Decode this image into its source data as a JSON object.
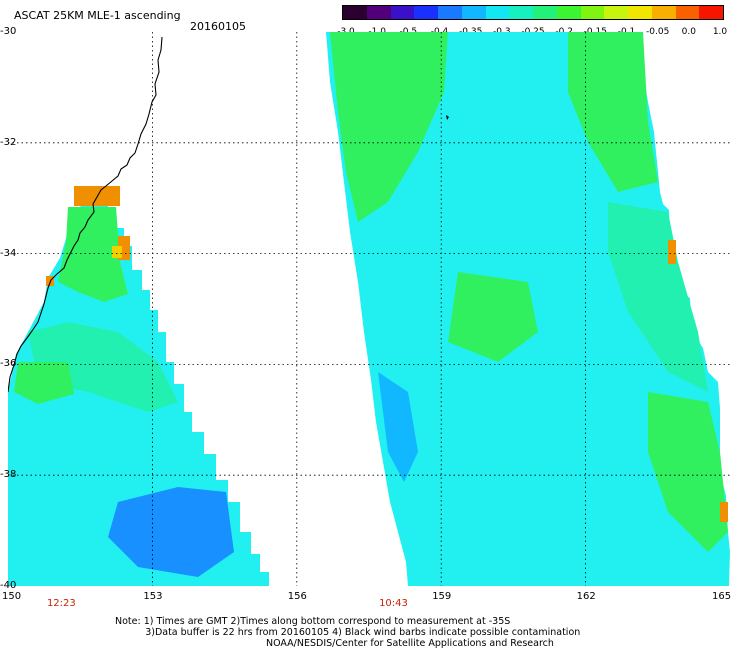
{
  "header": {
    "title": "ASCAT 25KM MLE-1 ascending",
    "date": "20160105"
  },
  "colorbar": {
    "labels": [
      "-3.0",
      "-1.0",
      "-0.5",
      "-0.4",
      "-0.35",
      "-0.3",
      "-0.25",
      "-0.2",
      "-0.15",
      "-0.1",
      "-0.05",
      "0.0",
      "1.0"
    ],
    "colors": [
      "#2b0030",
      "#52007a",
      "#3a10c8",
      "#1a30ff",
      "#1a7aff",
      "#11b8ff",
      "#12e8f2",
      "#17f0c0",
      "#22f27a",
      "#3cf532",
      "#80f50f",
      "#c8f50d",
      "#f0e600",
      "#f8b000",
      "#f86000",
      "#f81500"
    ]
  },
  "map": {
    "lat_labels": [
      "-30",
      "-32",
      "-34",
      "-36",
      "-38",
      "-40"
    ],
    "lon_labels": [
      "150",
      "153",
      "156",
      "159",
      "162",
      "165"
    ],
    "lat_range": [
      -40,
      -30
    ],
    "lon_range": [
      150,
      165
    ],
    "time_labels": [
      {
        "text": "12:23",
        "lon": 151.1
      },
      {
        "text": "10:43",
        "lon": 158.0
      }
    ],
    "colors": {
      "cyan": "#22f0f0",
      "light_cyan": "#3ef8f0",
      "aqua_green": "#22f0b0",
      "green": "#30f060",
      "bright_green": "#33f533",
      "blue": "#12b8ff",
      "deep_blue": "#1890ff",
      "yellow": "#f0d000",
      "orange": "#f09000",
      "grid": "#000000"
    }
  },
  "notes": {
    "line1": "Note: 1) Times are GMT 2)Times along bottom correspond to measurement at -35S",
    "line2": "          3)Data buffer is 22 hrs from 20160105 4) Black wind barbs indicate possible contamination",
    "line3": "                                                  NOAA/NESDIS/Center for Satellite Applications and Research"
  }
}
